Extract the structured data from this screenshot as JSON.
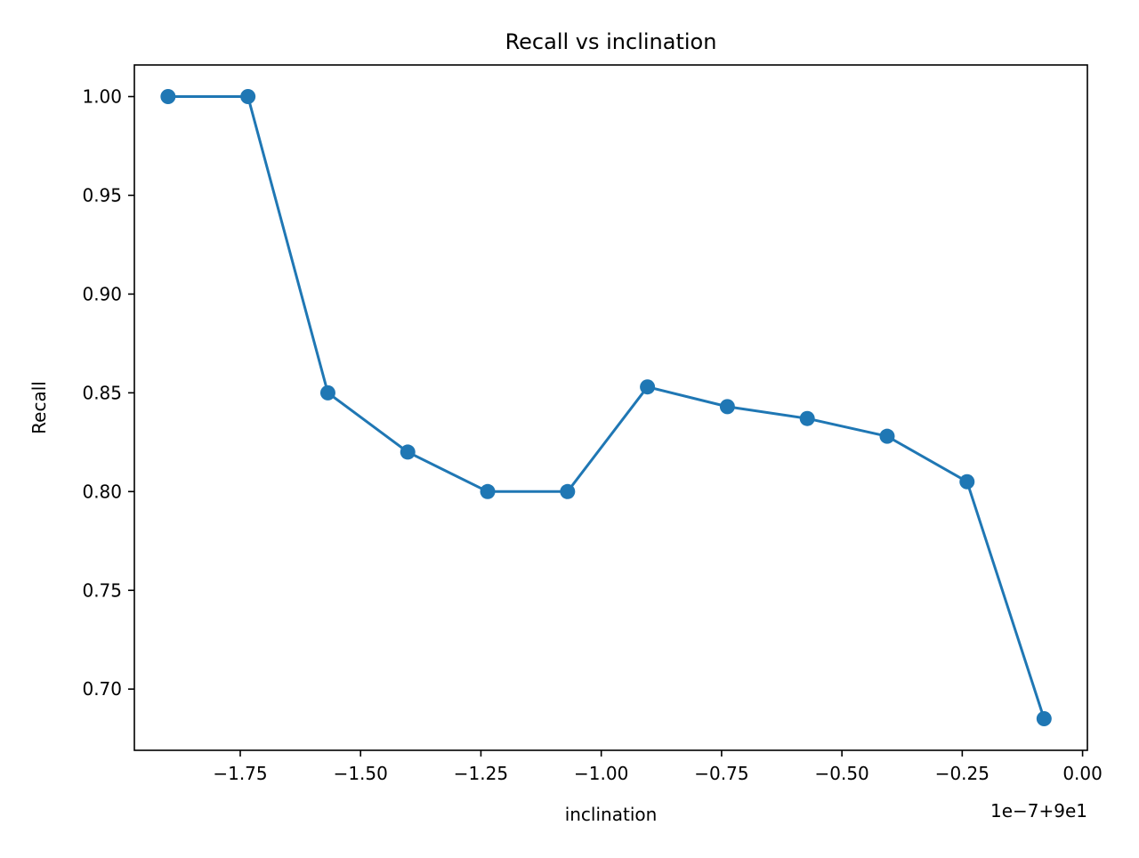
{
  "chart_data": {
    "type": "line",
    "title": "Recall vs inclination",
    "xlabel": "inclination",
    "ylabel": "Recall",
    "x_offset_label": "1e−7+9e1",
    "x": [
      -1.9,
      -1.734,
      -1.568,
      -1.402,
      -1.236,
      -1.07,
      -0.904,
      -0.738,
      -0.572,
      -0.406,
      -0.24,
      -0.08
    ],
    "series": [
      {
        "name": "",
        "color": "#1f77b4",
        "values": [
          1.0,
          1.0,
          0.85,
          0.82,
          0.8,
          0.8,
          0.853,
          0.843,
          0.837,
          0.828,
          0.805,
          0.685
        ]
      }
    ],
    "xlim": [
      -1.97,
      0.01
    ],
    "ylim": [
      0.669,
      1.016
    ],
    "xticks": [
      -1.75,
      -1.5,
      -1.25,
      -1.0,
      -0.75,
      -0.5,
      -0.25,
      0.0
    ],
    "xtick_labels": [
      "−1.75",
      "−1.50",
      "−1.25",
      "−1.00",
      "−0.75",
      "−0.50",
      "−0.25",
      "0.00"
    ],
    "yticks": [
      0.7,
      0.75,
      0.8,
      0.85,
      0.9,
      0.95,
      1.0
    ],
    "ytick_labels": [
      "0.70",
      "0.75",
      "0.80",
      "0.85",
      "0.90",
      "0.95",
      "1.00"
    ],
    "grid": false,
    "legend": "none"
  }
}
